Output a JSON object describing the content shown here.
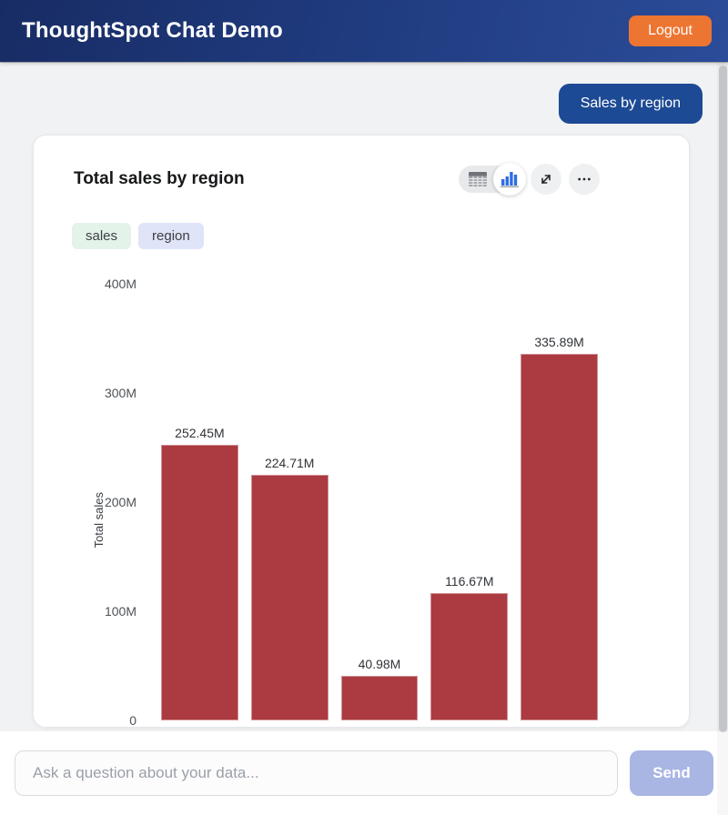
{
  "header": {
    "title": "ThoughtSpot Chat Demo",
    "logout_label": "Logout"
  },
  "chat": {
    "user_message": "Sales by region"
  },
  "card": {
    "title": "Total sales by region",
    "chips": [
      {
        "label": "sales",
        "color": "#e4f3ea"
      },
      {
        "label": "region",
        "color": "#dfe4f8"
      }
    ],
    "toolbar": {
      "views": [
        "table",
        "chart"
      ],
      "active_view": "chart"
    }
  },
  "chart_data": {
    "type": "bar",
    "title": "Total sales by region",
    "ylabel": "Total sales",
    "unit": "M",
    "axis_max": 400,
    "ylim": [
      0,
      400
    ],
    "grid": false,
    "y_ticks": [
      {
        "label": "400M",
        "value": 400
      },
      {
        "label": "300M",
        "value": 300
      },
      {
        "label": "200M",
        "value": 200
      },
      {
        "label": "100M",
        "value": 100
      },
      {
        "label": "0",
        "value": 0
      }
    ],
    "bars": [
      {
        "label": "252.45M",
        "value": 252.45
      },
      {
        "label": "224.71M",
        "value": 224.71
      },
      {
        "label": "40.98M",
        "value": 40.98
      },
      {
        "label": "116.67M",
        "value": 116.67
      },
      {
        "label": "335.89M",
        "value": 335.89
      }
    ],
    "bar_color": "#ab3a41"
  },
  "composer": {
    "placeholder": "Ask a question about your data...",
    "send_label": "Send"
  },
  "colors": {
    "header_blue": "#1f3a7d",
    "bubble_blue": "#1d4a94",
    "accent_orange": "#ed7532",
    "bar_red": "#ab3a41",
    "send_blue": "#a9b5e3"
  }
}
